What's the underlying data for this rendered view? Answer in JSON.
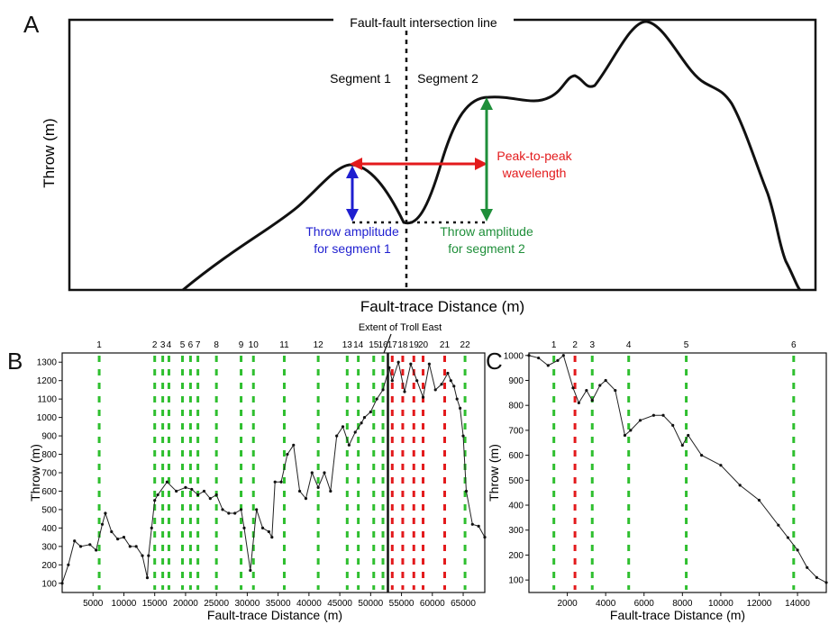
{
  "panel_a": {
    "letter": "A",
    "intersection_label": "Fault-fault intersection line",
    "segment1_label": "Segment 1",
    "segment2_label": "Segment 2",
    "ylabel": "Throw (m)",
    "xlabel": "Fault-trace Distance (m)",
    "wavelength_label_1": "Peak-to-peak",
    "wavelength_label_2": "wavelength",
    "amp1_label_1": "Throw amplitude",
    "amp1_label_2": "for segment 1",
    "amp2_label_1": "Throw amplitude",
    "amp2_label_2": "for segment 2",
    "colors": {
      "wavelength": "#e31a1c",
      "amp1": "#1f1fd0",
      "amp2": "#1f8f3a"
    }
  },
  "panel_b": {
    "letter": "B",
    "extent_label": "Extent of Troll East",
    "xlabel": "Fault-trace Distance (m)",
    "ylabel": "Throw (m)"
  },
  "panel_c": {
    "letter": "C",
    "xlabel": "Fault-trace Distance (m)",
    "ylabel": "Throw (m)"
  },
  "chart_data": [
    {
      "type": "line",
      "panel": "B",
      "xlabel": "Fault-trace Distance (m)",
      "ylabel": "Throw (m)",
      "xlim": [
        0,
        68500
      ],
      "ylim": [
        50,
        1350
      ],
      "xticks": [
        5000,
        10000,
        15000,
        20000,
        25000,
        30000,
        35000,
        40000,
        45000,
        50000,
        55000,
        60000,
        65000
      ],
      "yticks": [
        100,
        200,
        300,
        400,
        500,
        600,
        700,
        800,
        900,
        1000,
        1100,
        1200,
        1300
      ],
      "x": [
        0,
        1000,
        2000,
        3000,
        4500,
        5500,
        6500,
        7000,
        8000,
        9000,
        10000,
        11000,
        12000,
        13000,
        13800,
        14000,
        14500,
        15000,
        15500,
        17000,
        18500,
        20000,
        21000,
        22000,
        23000,
        24000,
        25000,
        26000,
        27000,
        28000,
        29000,
        29500,
        30500,
        31500,
        32500,
        33500,
        34000,
        34500,
        35500,
        36500,
        37500,
        38500,
        39500,
        40500,
        41500,
        42500,
        43500,
        44500,
        45500,
        46500,
        47500,
        48500,
        49000,
        50000,
        51000,
        52000,
        53000,
        53500,
        54500,
        55500,
        56500,
        57500,
        58500,
        59500,
        60500,
        61500,
        62500,
        63000,
        63500,
        64000,
        64500,
        65000,
        65500,
        66500,
        67500,
        68500
      ],
      "y": [
        100,
        200,
        330,
        300,
        310,
        280,
        420,
        480,
        380,
        340,
        350,
        300,
        300,
        250,
        130,
        250,
        400,
        550,
        580,
        650,
        600,
        620,
        610,
        580,
        600,
        560,
        580,
        500,
        480,
        480,
        500,
        400,
        170,
        500,
        400,
        380,
        350,
        650,
        650,
        800,
        850,
        600,
        560,
        700,
        620,
        700,
        600,
        900,
        950,
        850,
        920,
        970,
        1000,
        1030,
        1100,
        1150,
        1270,
        1200,
        1300,
        1140,
        1290,
        1200,
        1110,
        1290,
        1150,
        1180,
        1240,
        1200,
        1170,
        1100,
        1050,
        900,
        600,
        420,
        410,
        350
      ],
      "marker_lines": {
        "labels": [
          "1",
          "2",
          "3",
          "4",
          "5",
          "6",
          "7",
          "8",
          "9",
          "10",
          "11",
          "12",
          "13",
          "14",
          "15",
          "16",
          "17",
          "18",
          "19",
          "20",
          "21",
          "22"
        ],
        "x": [
          6000,
          15000,
          16300,
          17300,
          19500,
          20800,
          22000,
          25000,
          29000,
          31000,
          36000,
          41500,
          46200,
          48000,
          50500,
          52000,
          53500,
          55200,
          57000,
          58500,
          62000,
          65300
        ],
        "colors": [
          "green",
          "green",
          "green",
          "green",
          "green",
          "green",
          "green",
          "green",
          "green",
          "green",
          "green",
          "green",
          "green",
          "green",
          "green",
          "green",
          "red",
          "red",
          "red",
          "red",
          "red",
          "green"
        ]
      },
      "extent_line_x": 52800
    },
    {
      "type": "line",
      "panel": "C",
      "xlabel": "Fault-trace Distance (m)",
      "ylabel": "Throw (m)",
      "xlim": [
        0,
        15500
      ],
      "ylim": [
        50,
        1010
      ],
      "xticks": [
        2000,
        4000,
        6000,
        8000,
        10000,
        12000,
        14000
      ],
      "yticks": [
        100,
        200,
        300,
        400,
        500,
        600,
        700,
        800,
        900,
        1000
      ],
      "x": [
        0,
        500,
        1000,
        1500,
        1800,
        2300,
        2600,
        3000,
        3300,
        3700,
        4000,
        4500,
        5000,
        5300,
        5800,
        6500,
        7000,
        7500,
        8000,
        8300,
        9000,
        10000,
        11000,
        12000,
        13000,
        13500,
        14000,
        14500,
        15000,
        15500
      ],
      "y": [
        1000,
        990,
        960,
        980,
        1000,
        870,
        810,
        860,
        820,
        880,
        900,
        860,
        680,
        700,
        740,
        760,
        760,
        720,
        640,
        680,
        600,
        560,
        480,
        420,
        320,
        270,
        220,
        150,
        110,
        90
      ],
      "marker_lines": {
        "labels": [
          "1",
          "2",
          "3",
          "4",
          "5",
          "6"
        ],
        "x": [
          1300,
          2400,
          3300,
          5200,
          8200,
          13800
        ],
        "colors": [
          "green",
          "red",
          "green",
          "green",
          "green",
          "green"
        ]
      }
    }
  ]
}
